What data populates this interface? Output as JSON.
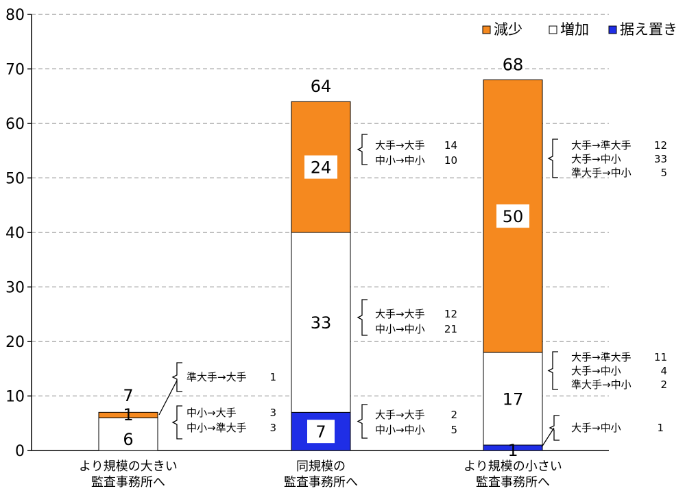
{
  "chart_data": {
    "type": "bar",
    "stacked": true,
    "ylim": [
      0,
      80
    ],
    "yticks": [
      "0",
      "10",
      "20",
      "30",
      "40",
      "50",
      "60",
      "70",
      "80"
    ],
    "grid": true,
    "legend_position": "top-right",
    "categories": [
      [
        "より規模の大きい",
        "監査事務所へ"
      ],
      [
        "同規模の",
        "監査事務所へ"
      ],
      [
        "より規模の小さい",
        "監査事務所へ"
      ]
    ],
    "series": [
      {
        "name": "据え置き",
        "color": "#1f2ee6",
        "values": [
          0,
          7,
          1
        ]
      },
      {
        "name": "増加",
        "color": "#ffffff",
        "values": [
          6,
          33,
          17
        ]
      },
      {
        "name": "減少",
        "color": "#f5891f",
        "values": [
          1,
          24,
          50
        ]
      }
    ],
    "legend_order": [
      2,
      1,
      0
    ],
    "totals": [
      7,
      64,
      68
    ],
    "segment_labels": [
      [
        "",
        "6",
        "1"
      ],
      [
        "7",
        "33",
        "24"
      ],
      [
        "1",
        "17",
        "50"
      ]
    ],
    "annotations": [
      {
        "bar": 0,
        "segment": 2,
        "lines": [
          [
            "準大手→大手",
            "1"
          ]
        ]
      },
      {
        "bar": 0,
        "segment": 1,
        "lines": [
          [
            "中小→大手",
            "3"
          ],
          [
            "中小→準大手",
            "3"
          ]
        ]
      },
      {
        "bar": 1,
        "segment": 2,
        "lines": [
          [
            "大手→大手",
            "14"
          ],
          [
            "中小→中小",
            "10"
          ]
        ]
      },
      {
        "bar": 1,
        "segment": 1,
        "lines": [
          [
            "大手→大手",
            "12"
          ],
          [
            "中小→中小",
            "21"
          ]
        ]
      },
      {
        "bar": 1,
        "segment": 0,
        "lines": [
          [
            "大手→大手",
            "2"
          ],
          [
            "中小→中小",
            "5"
          ]
        ]
      },
      {
        "bar": 2,
        "segment": 2,
        "lines": [
          [
            "大手→準大手",
            "12"
          ],
          [
            "大手→中小",
            "33"
          ],
          [
            "準大手→中小",
            "5"
          ]
        ]
      },
      {
        "bar": 2,
        "segment": 1,
        "lines": [
          [
            "大手→準大手",
            "11"
          ],
          [
            "大手→中小",
            "4"
          ],
          [
            "準大手→中小",
            "2"
          ]
        ]
      },
      {
        "bar": 2,
        "segment": 0,
        "lines": [
          [
            "大手→中小",
            "1"
          ]
        ]
      }
    ]
  }
}
